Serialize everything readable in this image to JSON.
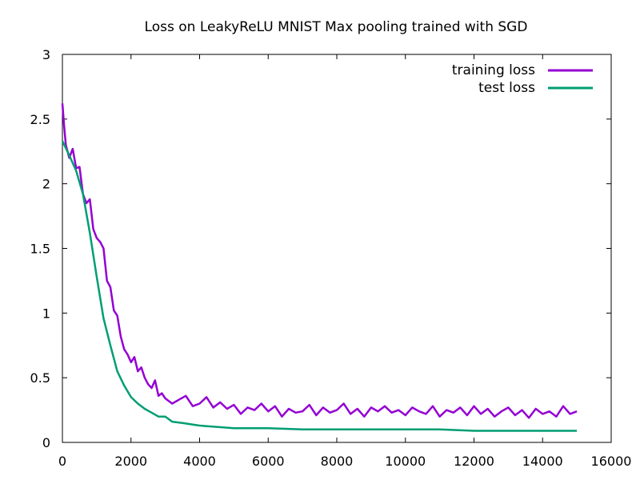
{
  "chart_data": {
    "type": "line",
    "title": "Loss on LeakyReLU MNIST Max pooling trained with SGD",
    "xlabel": "",
    "ylabel": "",
    "xlim": [
      0,
      16000
    ],
    "ylim": [
      0,
      3
    ],
    "x_ticks": [
      "0",
      "2000",
      "4000",
      "6000",
      "8000",
      "10000",
      "12000",
      "14000",
      "16000"
    ],
    "y_ticks": [
      "0",
      "0.5",
      "1",
      "1.5",
      "2",
      "2.5",
      "3"
    ],
    "legend_position": "top-right",
    "grid": false,
    "series": [
      {
        "name": "training loss",
        "color": "#9400d3",
        "x": [
          0,
          50,
          100,
          200,
          300,
          400,
          500,
          600,
          700,
          800,
          900,
          1000,
          1100,
          1200,
          1300,
          1400,
          1500,
          1600,
          1700,
          1800,
          1900,
          2000,
          2100,
          2200,
          2300,
          2400,
          2500,
          2600,
          2700,
          2800,
          2900,
          3000,
          3200,
          3400,
          3600,
          3800,
          4000,
          4200,
          4400,
          4600,
          4800,
          5000,
          5200,
          5400,
          5600,
          5800,
          6000,
          6200,
          6400,
          6600,
          6800,
          7000,
          7200,
          7400,
          7600,
          7800,
          8000,
          8200,
          8400,
          8600,
          8800,
          9000,
          9200,
          9400,
          9600,
          9800,
          10000,
          10200,
          10400,
          10600,
          10800,
          11000,
          11200,
          11400,
          11600,
          11800,
          12000,
          12200,
          12400,
          12600,
          12800,
          13000,
          13200,
          13400,
          13600,
          13800,
          14000,
          14200,
          14400,
          14600,
          14800,
          15000
        ],
        "values": [
          2.62,
          2.45,
          2.3,
          2.2,
          2.27,
          2.12,
          2.13,
          1.92,
          1.85,
          1.88,
          1.65,
          1.58,
          1.55,
          1.5,
          1.25,
          1.2,
          1.02,
          0.98,
          0.82,
          0.72,
          0.68,
          0.62,
          0.66,
          0.55,
          0.58,
          0.5,
          0.45,
          0.42,
          0.48,
          0.36,
          0.38,
          0.34,
          0.3,
          0.33,
          0.36,
          0.28,
          0.3,
          0.35,
          0.27,
          0.31,
          0.26,
          0.29,
          0.22,
          0.27,
          0.25,
          0.3,
          0.24,
          0.28,
          0.2,
          0.26,
          0.23,
          0.24,
          0.29,
          0.21,
          0.27,
          0.23,
          0.25,
          0.3,
          0.22,
          0.26,
          0.2,
          0.27,
          0.24,
          0.28,
          0.23,
          0.25,
          0.21,
          0.27,
          0.24,
          0.22,
          0.28,
          0.2,
          0.25,
          0.23,
          0.27,
          0.21,
          0.28,
          0.22,
          0.26,
          0.2,
          0.24,
          0.27,
          0.21,
          0.25,
          0.19,
          0.26,
          0.22,
          0.24,
          0.2,
          0.28,
          0.22,
          0.24
        ]
      },
      {
        "name": "test loss",
        "color": "#009e73",
        "x": [
          0,
          200,
          400,
          600,
          800,
          1000,
          1200,
          1400,
          1600,
          1800,
          2000,
          2200,
          2400,
          2600,
          2800,
          3000,
          3200,
          3500,
          4000,
          4500,
          5000,
          6000,
          7000,
          8000,
          9000,
          10000,
          11000,
          12000,
          13000,
          14000,
          15000
        ],
        "values": [
          2.33,
          2.22,
          2.1,
          1.92,
          1.62,
          1.28,
          0.96,
          0.75,
          0.55,
          0.44,
          0.35,
          0.3,
          0.26,
          0.23,
          0.2,
          0.2,
          0.16,
          0.15,
          0.13,
          0.12,
          0.11,
          0.11,
          0.1,
          0.1,
          0.1,
          0.1,
          0.1,
          0.09,
          0.09,
          0.09,
          0.09
        ]
      }
    ]
  }
}
